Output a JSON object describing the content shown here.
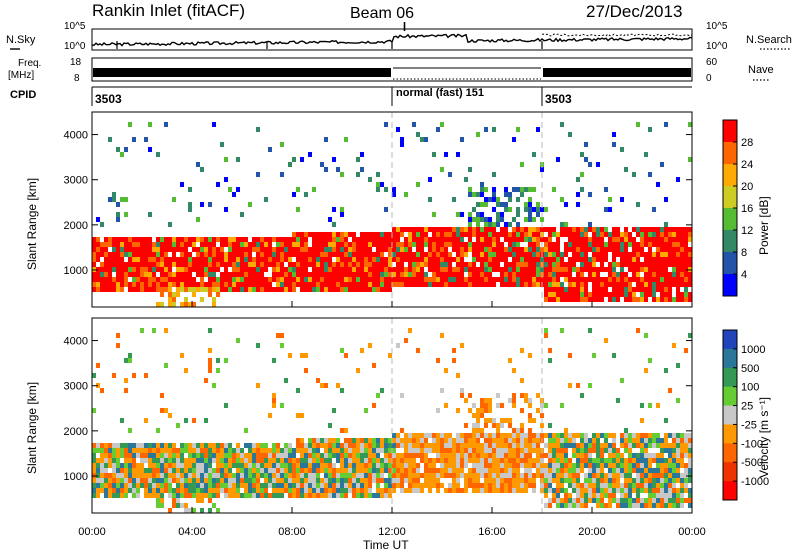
{
  "header": {
    "station": "Rankin Inlet (fitACF)",
    "beam": "Beam 06",
    "date": "27/Dec/2013"
  },
  "top_panels": {
    "nsky_label": "N.Sky",
    "nsky_ticks": [
      "10^5",
      "10^0"
    ],
    "nsearch_label": "N.Search",
    "nsearch_ticks": [
      "10^5",
      "10^0"
    ],
    "freq_label": "Freq.",
    "freq_unit": "[MHz]",
    "freq_ticks": [
      "18",
      "8"
    ],
    "nave_label": "Nave",
    "nave_ticks": [
      "60",
      "0"
    ],
    "cpid_label": "CPID",
    "cpid_segments": [
      {
        "label": "3503",
        "start_h": 0,
        "end_h": 12
      },
      {
        "label": "normal (fast) 151",
        "start_h": 12,
        "end_h": 18
      },
      {
        "label": "3503",
        "start_h": 18,
        "end_h": 24
      }
    ]
  },
  "axes": {
    "xlabel": "Time UT",
    "xticks": [
      "00:00",
      "04:00",
      "08:00",
      "12:00",
      "16:00",
      "20:00",
      "00:00"
    ],
    "ylabel": "Slant Range [km]",
    "yticks": [
      "1000",
      "2000",
      "3000",
      "4000"
    ]
  },
  "power_scale": {
    "label": "Power [dB]",
    "ticks": [
      "28",
      "24",
      "20",
      "16",
      "12",
      "8",
      "4"
    ],
    "colors": [
      "#ff0000",
      "#ff6600",
      "#ffaa00",
      "#cccc22",
      "#55bb33",
      "#338866",
      "#2255aa",
      "#0000ff"
    ]
  },
  "velocity_scale": {
    "label": "Velocity [m s⁻¹]",
    "ticks": [
      "1000",
      "500",
      "100",
      "25",
      "-25",
      "-100",
      "-500",
      "-1000"
    ],
    "colors": [
      "#2244bb",
      "#2a7799",
      "#339955",
      "#66cc33",
      "#c8c8c8",
      "#ff9900",
      "#ff6600",
      "#ee3300",
      "#ff0000"
    ]
  },
  "chart_data": [
    {
      "type": "heatmap",
      "name": "power",
      "x_range_h": [
        0,
        24
      ],
      "ylim": [
        180,
        4500
      ],
      "dashed_time_markers_h": [
        12,
        18
      ],
      "echo_bands": [
        {
          "start_h": 0.0,
          "end_h": 8.0,
          "range_km": [
            600,
            1800
          ],
          "level": "high"
        },
        {
          "start_h": 8.0,
          "end_h": 12.0,
          "range_km": [
            600,
            1900
          ],
          "level": "high"
        },
        {
          "start_h": 12.0,
          "end_h": 18.0,
          "range_km": [
            700,
            2000
          ],
          "level": "high"
        },
        {
          "start_h": 15.0,
          "end_h": 18.0,
          "range_km": [
            1900,
            2900
          ],
          "level": "medium"
        },
        {
          "start_h": 18.0,
          "end_h": 24.0,
          "range_km": [
            400,
            2000
          ],
          "level": "high"
        },
        {
          "start_h": 2.5,
          "end_h": 5.0,
          "range_km": [
            250,
            700
          ],
          "level": "medium"
        },
        {
          "start_h": 0.0,
          "end_h": 24.0,
          "range_km": [
            2000,
            4300
          ],
          "level": "low"
        }
      ]
    },
    {
      "type": "heatmap",
      "name": "velocity",
      "x_range_h": [
        0,
        24
      ],
      "ylim": [
        180,
        4500
      ],
      "dashed_time_markers_h": [
        12,
        18
      ],
      "echo_bands": [
        {
          "start_h": 0.0,
          "end_h": 12.0,
          "range_km": [
            600,
            1900
          ],
          "level": "mixed"
        },
        {
          "start_h": 12.0,
          "end_h": 18.0,
          "range_km": [
            700,
            2000
          ],
          "level": "negative"
        },
        {
          "start_h": 15.0,
          "end_h": 18.0,
          "range_km": [
            1900,
            2900
          ],
          "level": "negative"
        },
        {
          "start_h": 18.0,
          "end_h": 24.0,
          "range_km": [
            400,
            2000
          ],
          "level": "mixed"
        },
        {
          "start_h": 0.0,
          "end_h": 24.0,
          "range_km": [
            2000,
            4300
          ],
          "level": "sparse"
        }
      ]
    }
  ]
}
